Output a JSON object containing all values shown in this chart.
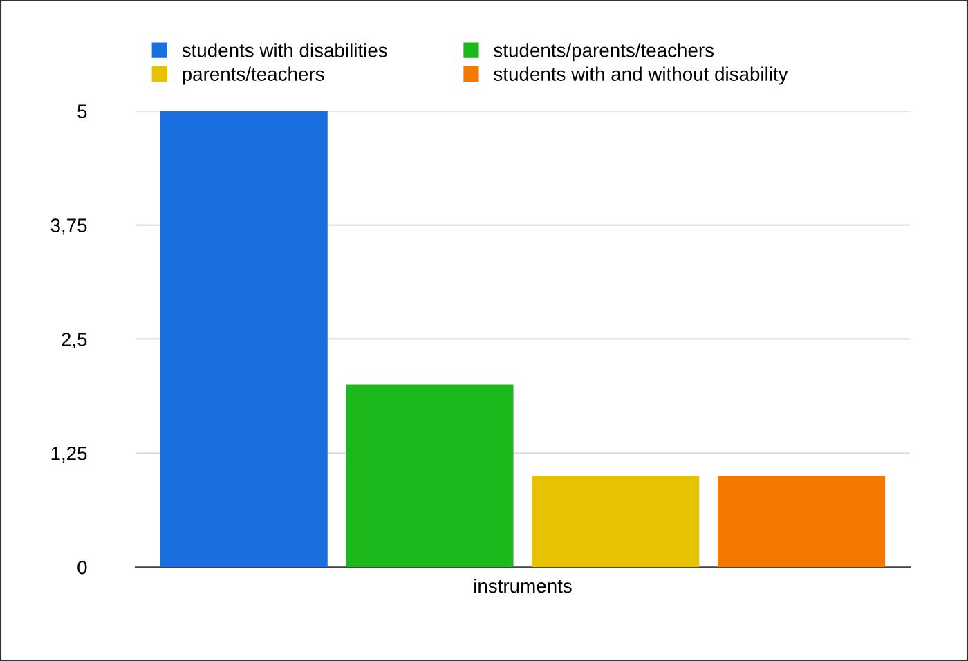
{
  "chart_data": {
    "type": "bar",
    "categories": [
      "instruments"
    ],
    "series": [
      {
        "name": "students with disabilities",
        "color": "#1a6fe0",
        "values": [
          5
        ]
      },
      {
        "name": "students/parents/teachers",
        "color": "#1cb81c",
        "values": [
          2
        ]
      },
      {
        "name": "parents/teachers",
        "color": "#e6c200",
        "values": [
          1
        ]
      },
      {
        "name": "students with and without disability",
        "color": "#f57800",
        "values": [
          1
        ]
      }
    ],
    "ylim": [
      0,
      5
    ],
    "yticks": [
      0,
      {
        "value": 1.25,
        "label": "1,25"
      },
      {
        "value": 2.5,
        "label": "2,5"
      },
      {
        "value": 3.75,
        "label": "3,75"
      },
      5
    ],
    "grid": "y",
    "legend": "top"
  }
}
